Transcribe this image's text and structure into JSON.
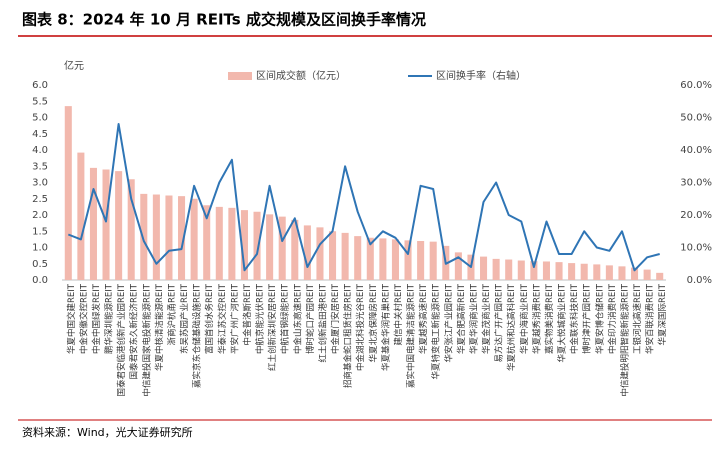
{
  "chart_data": {
    "type": "bar-line",
    "title": "图表 8：2024 年 10 月 REITs 成交规模及区间换手率情况",
    "y_unit": "亿元",
    "source": "资料来源：Wind，光大证券研究所",
    "categories": [
      "华夏中国交建REIT",
      "中金安徽交控REIT",
      "中金中国绿发REIT",
      "鹏华深圳能源REIT",
      "国泰君安临港创新产业园REIT",
      "国泰君安东久新经济REIT",
      "中信建投国家电投新能源REIT",
      "华夏中核清洁能源REIT",
      "浙商沪杭甬REIT",
      "东吴苏园产业REIT",
      "嘉实京东仓储基础设施REIT",
      "富国首创水务REIT",
      "华泰江苏交控REIT",
      "平安广州广河REIT",
      "中金普洛斯REIT",
      "中航京能光伏REIT",
      "红土创新深圳安居REIT",
      "中航首钢绿能REIT",
      "中金山东高速REIT",
      "博时蛇口产园REIT",
      "红土创新盐田港REIT",
      "中金厦门安居REIT",
      "招商基金蛇口租赁住房REIT",
      "中金湖北科投光谷REIT",
      "华夏北京保障房REIT",
      "华夏基金华润有巢REIT",
      "建信中关村REIT",
      "嘉实中国电建清洁能源REIT",
      "华夏越秀高速REIT",
      "华夏特变电工新能源REIT",
      "华安张江产业园REIT",
      "华夏合肥高新REIT",
      "华夏华润商业REIT",
      "华夏金茂商业REIT",
      "易方达广开产园REIT",
      "华夏杭州和达高科REIT",
      "华夏中海商业REIT",
      "华夏越秀消费REIT",
      "嘉实物美消费REIT",
      "华夏大悦城商业REIT",
      "中金联东科技REIT",
      "博时津开产园REIT",
      "华夏安博仓储REIT",
      "中金印力消费REIT",
      "中信建投明阳智能新能源REIT",
      "工银河北高速REIT",
      "华安百联消费REIT",
      "华夏深国际REIT"
    ],
    "series": [
      {
        "name": "区间成交额（亿元）",
        "color": "#f2b8ad",
        "values": [
          5.35,
          3.92,
          3.45,
          3.4,
          3.35,
          3.1,
          2.65,
          2.63,
          2.6,
          2.58,
          2.5,
          2.3,
          2.25,
          2.22,
          2.15,
          2.1,
          2.02,
          1.95,
          1.85,
          1.68,
          1.62,
          1.5,
          1.45,
          1.35,
          1.3,
          1.28,
          1.25,
          1.22,
          1.2,
          1.18,
          1.05,
          0.85,
          0.78,
          0.72,
          0.65,
          0.63,
          0.6,
          0.58,
          0.57,
          0.55,
          0.52,
          0.5,
          0.48,
          0.45,
          0.42,
          0.38,
          0.32,
          0.22
        ]
      },
      {
        "name": "区间换手率（右轴）",
        "color": "#2f75b5",
        "axis": "y2",
        "values": [
          14,
          12.5,
          28,
          18,
          48,
          25,
          12,
          5,
          9,
          9.5,
          29,
          19,
          30,
          37,
          3,
          8,
          29,
          12,
          19,
          4,
          11,
          15,
          35,
          21,
          11,
          15,
          13,
          8,
          29,
          28,
          5,
          7,
          4,
          24,
          30,
          20,
          18,
          4,
          18,
          8,
          8,
          15,
          10,
          9,
          15,
          3,
          7,
          8
        ]
      }
    ],
    "ylim": [
      0,
      6
    ],
    "yticks": [
      {
        "value": 0,
        "label": "0.0"
      },
      {
        "value": 0.5,
        "label": "0.5"
      },
      {
        "value": 1,
        "label": "1.0"
      },
      {
        "value": 1.5,
        "label": "1.5"
      },
      {
        "value": 2,
        "label": "2.0"
      },
      {
        "value": 2.5,
        "label": "2.5"
      },
      {
        "value": 3,
        "label": "3.0"
      },
      {
        "value": 3.5,
        "label": "3.5"
      },
      {
        "value": 4,
        "label": "4.0"
      },
      {
        "value": 4.5,
        "label": "4.5"
      },
      {
        "value": 5,
        "label": "5.0"
      },
      {
        "value": 5.5,
        "label": "5.5"
      },
      {
        "value": 6,
        "label": "6.0"
      }
    ],
    "y2lim": [
      0,
      60
    ],
    "y2ticks": [
      {
        "value": 0,
        "label": "0.0%"
      },
      {
        "value": 10,
        "label": "10.0%"
      },
      {
        "value": 20,
        "label": "20.0%"
      },
      {
        "value": 30,
        "label": "30.0%"
      },
      {
        "value": 40,
        "label": "40.0%"
      },
      {
        "value": 50,
        "label": "50.0%"
      },
      {
        "value": 60,
        "label": "60.0%"
      }
    ],
    "legend": "top"
  }
}
